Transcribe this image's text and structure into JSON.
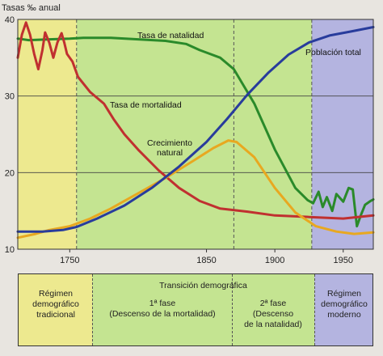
{
  "chart_data": {
    "type": "line",
    "ylabel": "Tasas ‰ anual",
    "ylim": [
      10,
      40
    ],
    "xlim": [
      1712,
      1972
    ],
    "y_ticks": [
      10,
      20,
      30,
      40
    ],
    "x_ticks": [
      1750,
      1850,
      1900,
      1950
    ],
    "grid": true,
    "phase_boundaries": [
      1755,
      1870,
      1927
    ],
    "phase_colors": [
      "#ede98f",
      "#c4e491",
      "#b4b4e0"
    ],
    "series": [
      {
        "name": "Tasa de natalidad",
        "color": "#2a8a2a",
        "points": [
          [
            1712,
            37.5
          ],
          [
            1720,
            37.3
          ],
          [
            1735,
            37.4
          ],
          [
            1750,
            37.5
          ],
          [
            1760,
            37.6
          ],
          [
            1780,
            37.6
          ],
          [
            1800,
            37.4
          ],
          [
            1820,
            37.2
          ],
          [
            1835,
            36.8
          ],
          [
            1845,
            36.0
          ],
          [
            1860,
            35.0
          ],
          [
            1870,
            33.5
          ],
          [
            1885,
            29.0
          ],
          [
            1900,
            23.0
          ],
          [
            1915,
            18.0
          ],
          [
            1924,
            16.4
          ],
          [
            1928,
            16.0
          ],
          [
            1932,
            17.5
          ],
          [
            1935,
            15.5
          ],
          [
            1938,
            16.8
          ],
          [
            1942,
            15.0
          ],
          [
            1945,
            17.2
          ],
          [
            1950,
            16.2
          ],
          [
            1954,
            18.0
          ],
          [
            1957,
            17.8
          ],
          [
            1960,
            13.0
          ],
          [
            1963,
            14.5
          ],
          [
            1966,
            15.8
          ],
          [
            1970,
            16.3
          ],
          [
            1972,
            16.5
          ]
        ]
      },
      {
        "name": "Tasa de mortalidad",
        "color": "#c03030",
        "points": [
          [
            1712,
            35.0
          ],
          [
            1715,
            38.0
          ],
          [
            1718,
            39.6
          ],
          [
            1721,
            38.0
          ],
          [
            1724,
            35.5
          ],
          [
            1727,
            33.5
          ],
          [
            1730,
            36.0
          ],
          [
            1732,
            38.3
          ],
          [
            1735,
            37.0
          ],
          [
            1738,
            35.0
          ],
          [
            1741,
            37.0
          ],
          [
            1744,
            38.2
          ],
          [
            1746,
            37.0
          ],
          [
            1748,
            35.5
          ],
          [
            1752,
            34.5
          ],
          [
            1756,
            32.5
          ],
          [
            1765,
            30.5
          ],
          [
            1775,
            29.0
          ],
          [
            1782,
            27.0
          ],
          [
            1790,
            25.0
          ],
          [
            1800,
            23.0
          ],
          [
            1815,
            20.3
          ],
          [
            1830,
            18.0
          ],
          [
            1845,
            16.3
          ],
          [
            1860,
            15.3
          ],
          [
            1880,
            14.9
          ],
          [
            1900,
            14.4
          ],
          [
            1925,
            14.2
          ],
          [
            1950,
            14.0
          ],
          [
            1972,
            14.4
          ]
        ]
      },
      {
        "name": "Crecimiento natural",
        "color": "#e8a820",
        "points": [
          [
            1712,
            11.5
          ],
          [
            1725,
            12.0
          ],
          [
            1735,
            12.5
          ],
          [
            1750,
            13.0
          ],
          [
            1765,
            14.0
          ],
          [
            1780,
            15.3
          ],
          [
            1800,
            17.3
          ],
          [
            1820,
            19.3
          ],
          [
            1840,
            21.5
          ],
          [
            1855,
            23.2
          ],
          [
            1866,
            24.2
          ],
          [
            1872,
            24.0
          ],
          [
            1885,
            22.0
          ],
          [
            1900,
            18.0
          ],
          [
            1915,
            14.8
          ],
          [
            1930,
            13.0
          ],
          [
            1945,
            12.3
          ],
          [
            1958,
            12.0
          ],
          [
            1972,
            12.2
          ]
        ]
      },
      {
        "name": "Población total",
        "color": "#283c9c",
        "points": [
          [
            1712,
            12.3
          ],
          [
            1730,
            12.3
          ],
          [
            1745,
            12.5
          ],
          [
            1755,
            12.9
          ],
          [
            1770,
            14.0
          ],
          [
            1790,
            15.7
          ],
          [
            1810,
            18.0
          ],
          [
            1830,
            20.8
          ],
          [
            1850,
            24.0
          ],
          [
            1865,
            27.0
          ],
          [
            1880,
            30.2
          ],
          [
            1895,
            33.0
          ],
          [
            1910,
            35.4
          ],
          [
            1925,
            37.0
          ],
          [
            1940,
            37.9
          ],
          [
            1955,
            38.4
          ],
          [
            1972,
            39.0
          ]
        ]
      }
    ],
    "labels": [
      {
        "key": "natalidad",
        "text": "Tasa de natalidad"
      },
      {
        "key": "poblacion",
        "text": "Población total"
      },
      {
        "key": "mortalidad",
        "text": "Tasa de mortalidad"
      },
      {
        "key": "crecimiento_1",
        "text": "Crecimiento"
      },
      {
        "key": "crecimiento_2",
        "text": "natural"
      }
    ]
  },
  "legend": {
    "title": "Transición demográfica",
    "phase1": [
      "Régimen",
      "demográfico",
      "tradicional"
    ],
    "phase2": [
      "1ª fase",
      "(Descenso de la mortalidad)"
    ],
    "phase3": [
      "2ª fase",
      "(Descenso",
      "de la natalidad)"
    ],
    "phase4": [
      "Régimen",
      "demográfico",
      "moderno"
    ]
  }
}
